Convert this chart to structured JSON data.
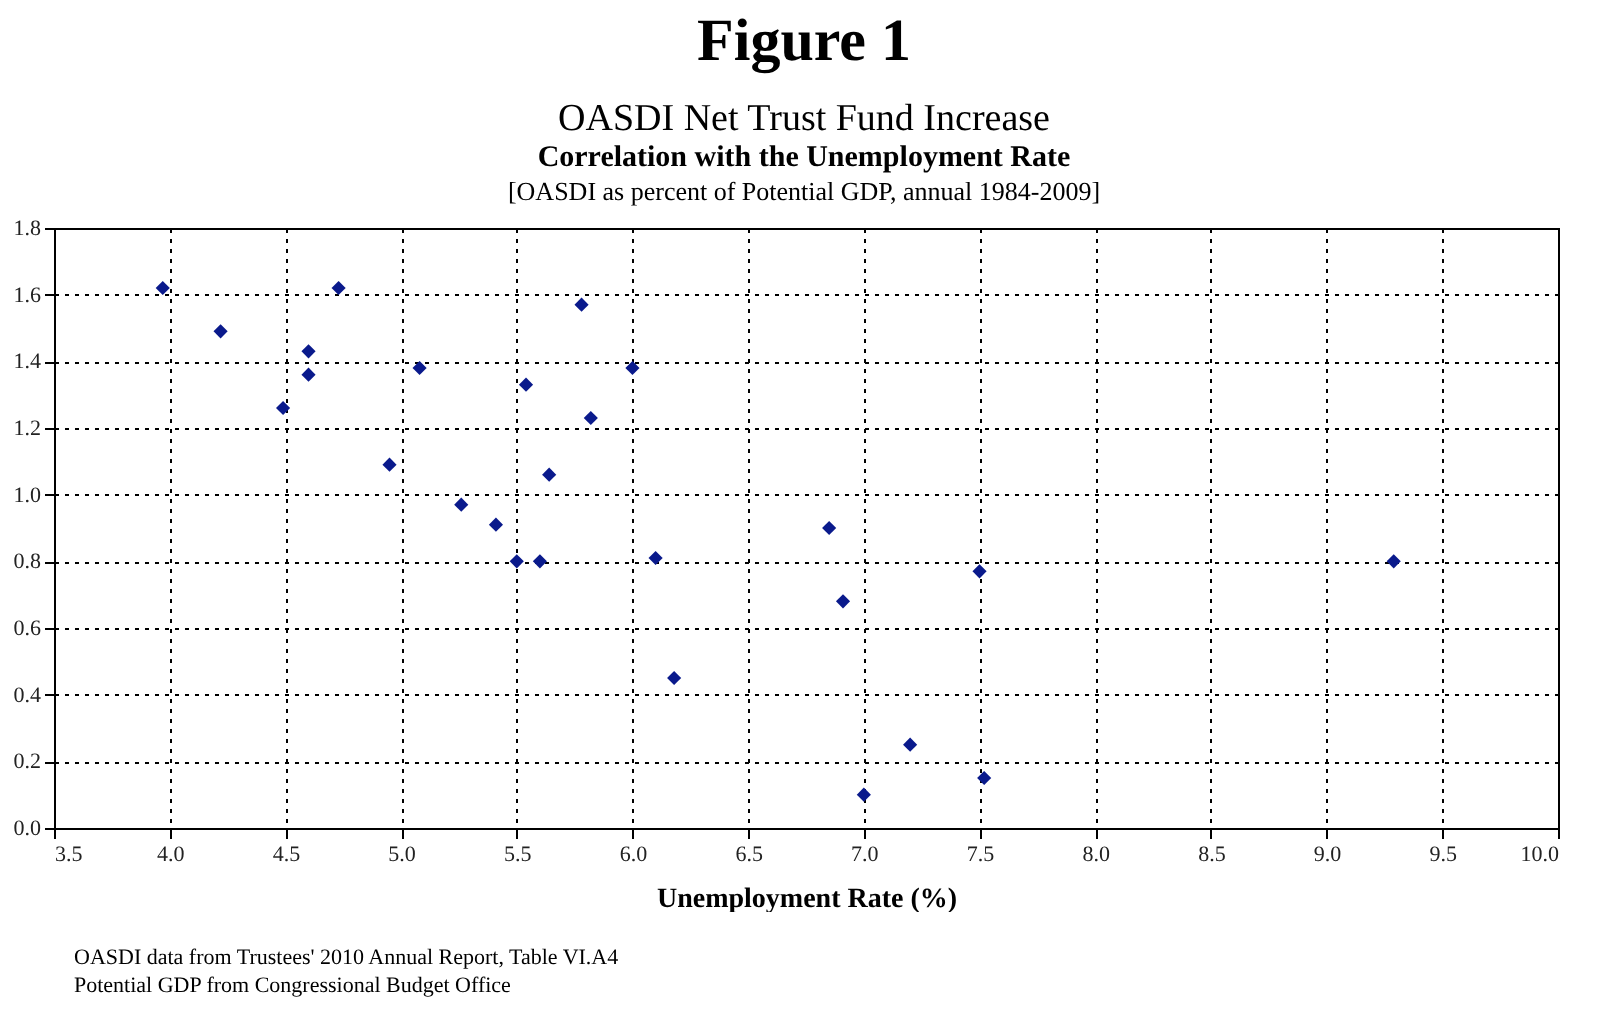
{
  "chart_data": {
    "type": "scatter",
    "title": "Figure 1",
    "subtitle": "OASDI Net Trust Fund Increase",
    "xlabel": "Unemployment Rate (%)",
    "annotations": [
      "Correlation with the Unemployment Rate",
      "[OASDI as percent of Potential GDP, annual 1984-2009]",
      "OASDI data from Trustees' 2010 Annual Report, Table VI.A4",
      "Potential GDP from Congressional Budget Office"
    ],
    "x": [
      3.97,
      4.22,
      4.49,
      4.6,
      4.6,
      4.73,
      4.95,
      5.08,
      5.26,
      5.41,
      5.5,
      5.6,
      5.54,
      5.64,
      5.78,
      5.82,
      6.0,
      6.1,
      6.18,
      6.85,
      6.91,
      7.0,
      7.2,
      7.5,
      7.52,
      9.29
    ],
    "series": [
      {
        "color": "#0a1a8c",
        "values": [
          1.62,
          1.49,
          1.26,
          1.43,
          1.36,
          1.62,
          1.09,
          1.38,
          0.97,
          0.91,
          0.8,
          0.8,
          1.33,
          1.06,
          1.57,
          1.23,
          1.38,
          0.81,
          0.45,
          0.9,
          0.68,
          0.1,
          0.25,
          0.77,
          0.15,
          0.8
        ]
      }
    ],
    "xlim": [
      3.5,
      10.0
    ],
    "xticks": [
      {
        "value": 3.5,
        "label": "3.5"
      },
      {
        "value": 4,
        "label": "4.0"
      },
      {
        "value": 4.5,
        "label": "4.5"
      },
      {
        "value": 5,
        "label": "5.0"
      },
      {
        "value": 5.5,
        "label": "5.5"
      },
      {
        "value": 6,
        "label": "6.0"
      },
      {
        "value": 6.5,
        "label": "6.5"
      },
      {
        "value": 7,
        "label": "7.0"
      },
      {
        "value": 7.5,
        "label": "7.5"
      },
      {
        "value": 8,
        "label": "8.0"
      },
      {
        "value": 8.5,
        "label": "8.5"
      },
      {
        "value": 9,
        "label": "9.0"
      },
      {
        "value": 9.5,
        "label": "9.5"
      },
      {
        "value": 10,
        "label": "10.0"
      }
    ],
    "ylim": [
      0,
      1.8
    ],
    "yticks": [
      {
        "value": 0,
        "label": "0.0"
      },
      {
        "value": 0.2,
        "label": "0.2"
      },
      {
        "value": 0.4,
        "label": "0.4"
      },
      {
        "value": 0.6,
        "label": "0.6"
      },
      {
        "value": 0.8,
        "label": "0.8"
      },
      {
        "value": 1,
        "label": "1.0"
      },
      {
        "value": 1.2,
        "label": "1.2"
      },
      {
        "value": 1.4,
        "label": "1.4"
      },
      {
        "value": 1.6,
        "label": "1.6"
      },
      {
        "value": 1.8,
        "label": "1.8"
      }
    ],
    "grid": true,
    "legend": false,
    "marker": "diamond"
  }
}
